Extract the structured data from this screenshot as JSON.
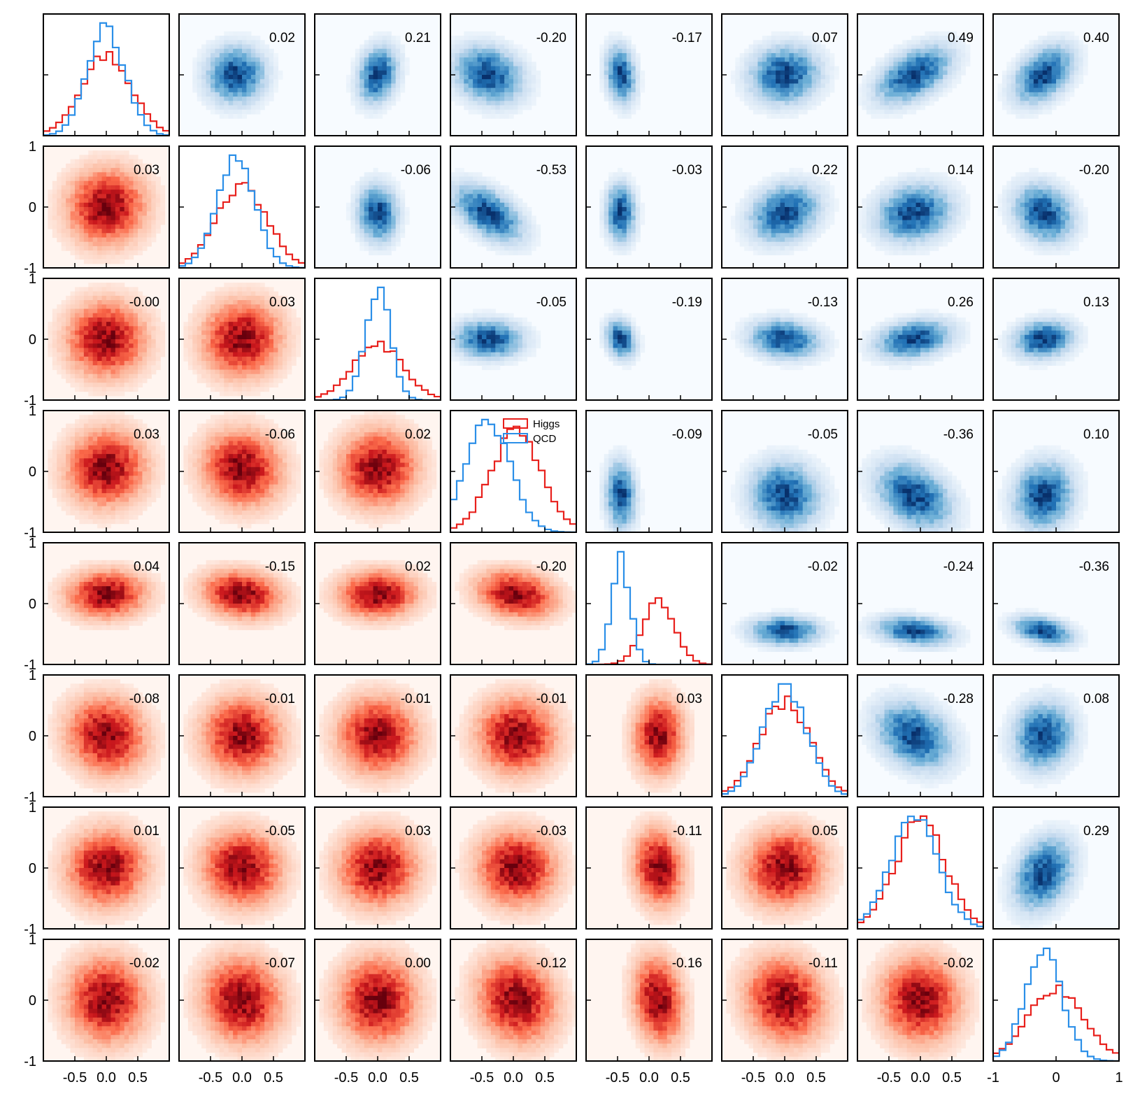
{
  "chart_data": {
    "type": "corner",
    "n_features": 8,
    "series": [
      {
        "name": "Higgs",
        "color": "#e8201c",
        "colormap": "Reds",
        "triangle": "lower"
      },
      {
        "name": "QCD",
        "color": "#2b8fe8",
        "colormap": "Blues",
        "triangle": "upper"
      }
    ],
    "legend": {
      "entries": [
        "Higgs",
        "QCD"
      ],
      "location": "upper-right",
      "panel": "row-4-col-4"
    },
    "correlation_matrix": [
      [
        null,
        0.02,
        0.21,
        -0.2,
        -0.17,
        0.07,
        0.49,
        0.4
      ],
      [
        0.03,
        null,
        -0.06,
        -0.53,
        -0.03,
        0.22,
        0.14,
        -0.2
      ],
      [
        -0.0,
        0.03,
        null,
        -0.05,
        -0.19,
        -0.13,
        0.26,
        0.13
      ],
      [
        0.03,
        -0.06,
        0.02,
        null,
        -0.09,
        -0.05,
        -0.36,
        0.1
      ],
      [
        0.04,
        -0.15,
        0.02,
        -0.2,
        null,
        -0.02,
        -0.24,
        -0.36
      ],
      [
        -0.08,
        -0.01,
        -0.01,
        -0.01,
        0.03,
        null,
        -0.28,
        0.08
      ],
      [
        0.01,
        -0.05,
        0.03,
        -0.03,
        -0.11,
        0.05,
        null,
        0.29
      ],
      [
        -0.02,
        -0.07,
        0.0,
        -0.12,
        -0.16,
        -0.11,
        -0.02,
        null
      ]
    ],
    "correlation_labels": [
      [
        null,
        "0.02",
        "0.21",
        "-0.20",
        "-0.17",
        "0.07",
        "0.49",
        "0.40"
      ],
      [
        "0.03",
        null,
        "-0.06",
        "-0.53",
        "-0.03",
        "0.22",
        "0.14",
        "-0.20"
      ],
      [
        "-0.00",
        "0.03",
        null,
        "-0.05",
        "-0.19",
        "-0.13",
        "0.26",
        "0.13"
      ],
      [
        "0.03",
        "-0.06",
        "0.02",
        null,
        "-0.09",
        "-0.05",
        "-0.36",
        "0.10"
      ],
      [
        "0.04",
        "-0.15",
        "0.02",
        "-0.20",
        null,
        "-0.02",
        "-0.24",
        "-0.36"
      ],
      [
        "-0.08",
        "-0.01",
        "-0.01",
        "-0.01",
        "0.03",
        null,
        "-0.28",
        "0.08"
      ],
      [
        "0.01",
        "-0.05",
        "0.03",
        "-0.03",
        "-0.11",
        "0.05",
        null,
        "0.29"
      ],
      [
        "-0.02",
        "-0.07",
        "0.00",
        "-0.12",
        "-0.16",
        "-0.11",
        "-0.02",
        null
      ]
    ],
    "feature_means": {
      "Higgs": [
        0.0,
        0.0,
        0.0,
        0.05,
        0.15,
        0.0,
        0.0,
        0.0
      ],
      "QCD": [
        0.0,
        -0.1,
        0.0,
        -0.4,
        -0.45,
        0.0,
        -0.1,
        -0.2
      ]
    },
    "feature_spreads": {
      "Higgs": [
        0.4,
        0.4,
        0.4,
        0.4,
        0.25,
        0.4,
        0.4,
        0.45
      ],
      "QCD": [
        0.3,
        0.3,
        0.2,
        0.35,
        0.15,
        0.35,
        0.38,
        0.3
      ]
    },
    "x_range": [
      -1,
      1
    ],
    "y_range": [
      -1,
      1
    ],
    "x_tick_labels": [
      "-0.5",
      "0.0",
      "0.5"
    ],
    "x_tick_values": [
      -0.5,
      0.0,
      0.5
    ],
    "last_x_tick_labels": [
      "-1",
      "0",
      "1"
    ],
    "last_x_tick_values": [
      -1,
      0,
      1
    ],
    "y_tick_labels": [
      "1",
      "0",
      "-1"
    ],
    "y_tick_values": [
      1,
      0,
      -1
    ]
  }
}
